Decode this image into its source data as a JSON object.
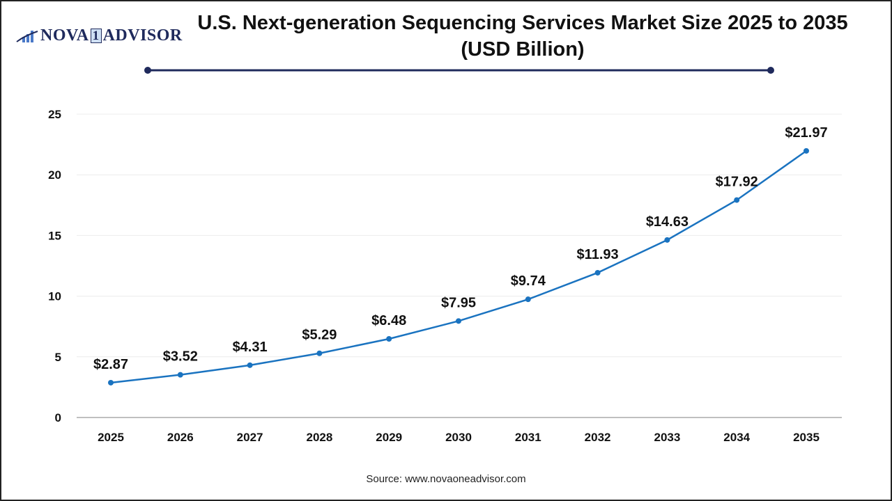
{
  "brand": {
    "logo_text_left": "NOVA",
    "logo_mark": "1",
    "logo_text_right": "ADVISOR"
  },
  "title": "U.S. Next-generation Sequencing Services Market Size 2025 to 2035 (USD Billion)",
  "source": "Source: www.novaoneadvisor.com",
  "colors": {
    "line": "#1a73c0",
    "title_rule": "#1f2a5c",
    "grid": "#ececec",
    "axis": "#bfbfbf"
  },
  "chart_data": {
    "type": "line",
    "title": "U.S. Next-generation Sequencing Services Market Size 2025 to 2035 (USD Billion)",
    "xlabel": "",
    "ylabel": "",
    "categories": [
      "2025",
      "2026",
      "2027",
      "2028",
      "2029",
      "2030",
      "2031",
      "2032",
      "2033",
      "2034",
      "2035"
    ],
    "values": [
      2.87,
      3.52,
      4.31,
      5.29,
      6.48,
      7.95,
      9.74,
      11.93,
      14.63,
      17.92,
      21.97
    ],
    "data_labels": [
      "$2.87",
      "$3.52",
      "$4.31",
      "$5.29",
      "$6.48",
      "$7.95",
      "$9.74",
      "$11.93",
      "$14.63",
      "$17.92",
      "$21.97"
    ],
    "ylim": [
      0,
      25
    ],
    "yticks": [
      "0",
      "5",
      "10",
      "15",
      "20",
      "25"
    ],
    "grid": true,
    "legend": "none"
  }
}
